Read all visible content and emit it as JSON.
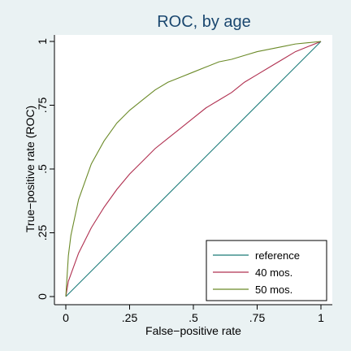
{
  "chart_data": {
    "type": "line",
    "title": "ROC, by age",
    "xlabel": "False−positive rate",
    "ylabel": "True−positive rate (ROC)",
    "xlim": [
      0,
      1
    ],
    "ylim": [
      0,
      1
    ],
    "xticks": [
      {
        "value": 0,
        "label": "0"
      },
      {
        "value": 0.25,
        "label": ".25"
      },
      {
        "value": 0.5,
        "label": ".5"
      },
      {
        "value": 0.75,
        "label": ".75"
      },
      {
        "value": 1,
        "label": "1"
      }
    ],
    "yticks": [
      {
        "value": 0,
        "label": "0"
      },
      {
        "value": 0.25,
        "label": ".25"
      },
      {
        "value": 0.5,
        "label": ".5"
      },
      {
        "value": 0.75,
        "label": ".75"
      },
      {
        "value": 1,
        "label": "1"
      }
    ],
    "grid": false,
    "legend_position": "bottom-right",
    "series": [
      {
        "name": "reference",
        "color": "#1a7a78",
        "x": [
          0,
          1
        ],
        "y": [
          0,
          1
        ]
      },
      {
        "name": "40 mos.",
        "color": "#b03050",
        "x": [
          0,
          0.01,
          0.05,
          0.1,
          0.15,
          0.2,
          0.25,
          0.3,
          0.35,
          0.4,
          0.45,
          0.5,
          0.55,
          0.6,
          0.65,
          0.7,
          0.75,
          0.8,
          0.85,
          0.9,
          0.95,
          1
        ],
        "y": [
          0,
          0.06,
          0.17,
          0.27,
          0.35,
          0.42,
          0.48,
          0.53,
          0.58,
          0.62,
          0.66,
          0.7,
          0.74,
          0.77,
          0.8,
          0.84,
          0.87,
          0.9,
          0.93,
          0.96,
          0.98,
          1
        ]
      },
      {
        "name": "50 mos.",
        "color": "#6b8a28",
        "x": [
          0,
          0.01,
          0.02,
          0.05,
          0.1,
          0.15,
          0.2,
          0.25,
          0.3,
          0.35,
          0.4,
          0.45,
          0.5,
          0.55,
          0.6,
          0.65,
          0.7,
          0.75,
          0.8,
          0.85,
          0.9,
          0.95,
          1
        ],
        "y": [
          0,
          0.16,
          0.24,
          0.38,
          0.52,
          0.61,
          0.68,
          0.73,
          0.77,
          0.81,
          0.84,
          0.86,
          0.88,
          0.9,
          0.92,
          0.93,
          0.945,
          0.96,
          0.97,
          0.98,
          0.99,
          0.995,
          1
        ]
      }
    ]
  }
}
